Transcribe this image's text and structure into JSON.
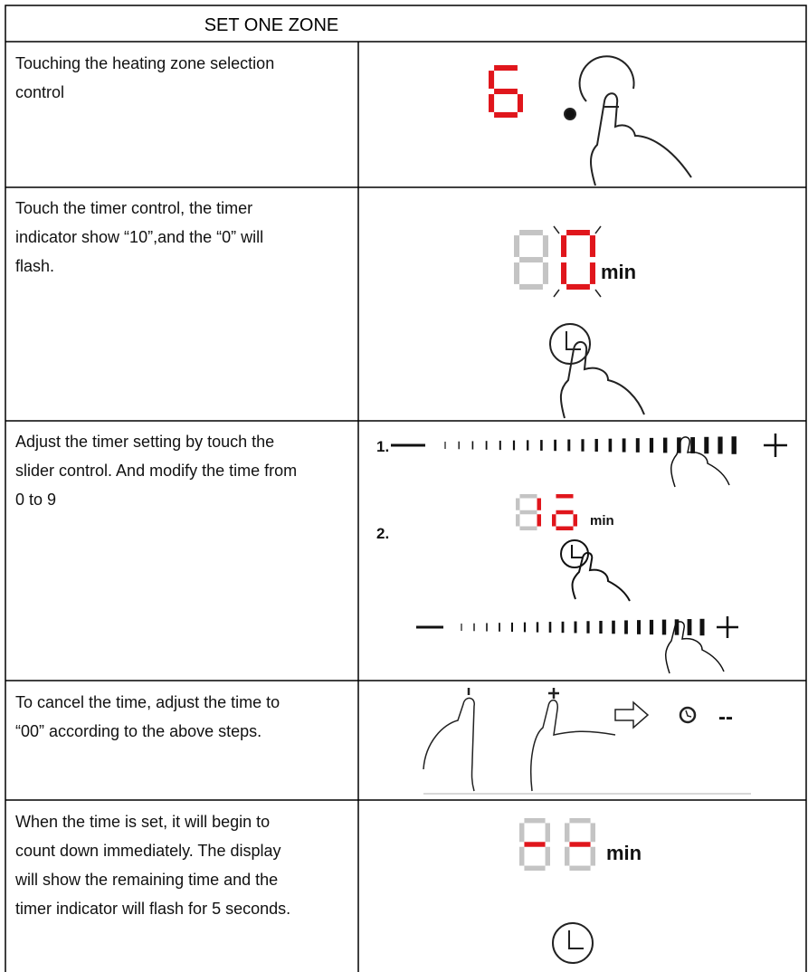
{
  "header": {
    "title": "SET ONE ZONE"
  },
  "table": {
    "rows": [
      {
        "instruction": [
          "Touching the heating zone selection",
          "control"
        ]
      },
      {
        "instruction": [
          "Touch the timer control, the timer",
          "indicator show “10”,and the “0” will",
          "flash."
        ],
        "labels": [
          "min"
        ]
      },
      {
        "instruction": [
          "Adjust the timer setting by touch the",
          "slider control. And modify the time from",
          "0 to 9"
        ],
        "labels": [
          "1.",
          "min",
          "2."
        ]
      },
      {
        "instruction": [
          "To cancel the time, adjust the time to",
          "“00” according to the above steps."
        ],
        "labels": [
          "--"
        ]
      },
      {
        "instruction": [
          "When the time is set, it will begin to",
          "count down immediately. The display",
          "will show the remaining time and the",
          "timer indicator will flash for 5 seconds."
        ],
        "labels": [
          "min"
        ]
      }
    ]
  }
}
